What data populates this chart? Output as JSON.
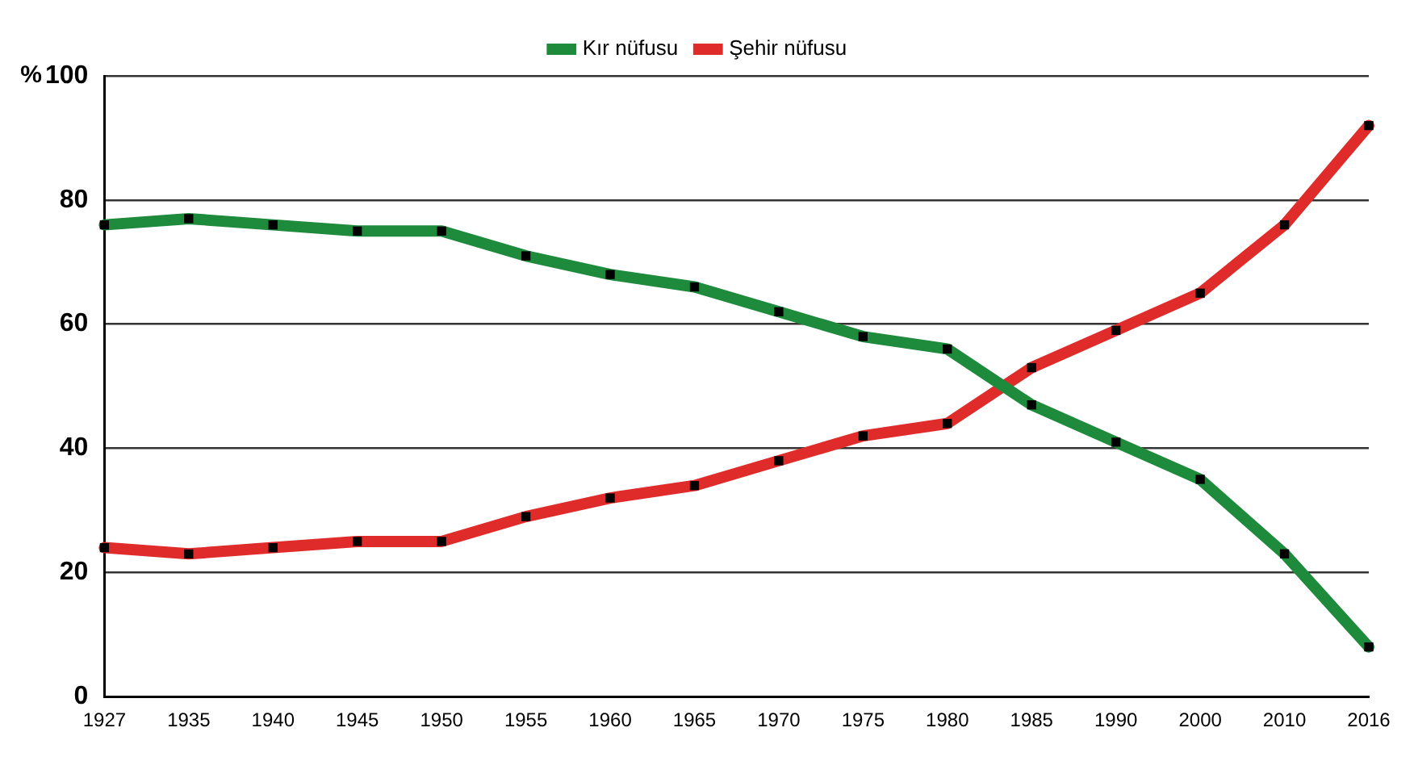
{
  "chart_data": {
    "type": "line",
    "ylabel": "%",
    "categories": [
      "1927",
      "1935",
      "1940",
      "1945",
      "1950",
      "1955",
      "1960",
      "1965",
      "1970",
      "1975",
      "1980",
      "1985",
      "1990",
      "2000",
      "2010",
      "2016"
    ],
    "series": [
      {
        "name": "Kır nüfusu",
        "color": "#1e8a3c",
        "values": [
          76,
          77,
          76,
          75,
          75,
          71,
          68,
          66,
          62,
          58,
          56,
          47,
          41,
          35,
          23,
          8
        ]
      },
      {
        "name": "Şehir nüfusu",
        "color": "#e02b2b",
        "values": [
          24,
          23,
          24,
          25,
          25,
          29,
          32,
          34,
          38,
          42,
          44,
          53,
          59,
          65,
          76,
          92
        ]
      }
    ],
    "ylim": [
      0,
      100
    ],
    "yticks": [
      0,
      20,
      40,
      60,
      80,
      100
    ],
    "grid": "y",
    "legend": "top",
    "marker": "square",
    "line_style": "solid"
  }
}
